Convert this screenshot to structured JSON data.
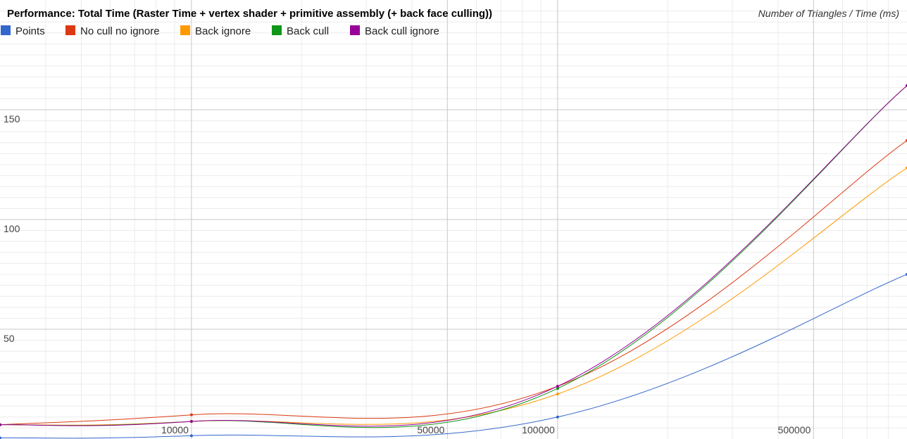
{
  "chart_data": {
    "type": "line",
    "title": "Performance: Total Time (Raster Time + vertex shader + primitive assembly (+ back face culling))",
    "subtitle": "Number of Triangles / Time (ms)",
    "legend_position": "top-left",
    "x_scale": "log",
    "xlim": [
      3000,
      900000
    ],
    "ylim": [
      0,
      200
    ],
    "x_ticks": [
      10000,
      50000,
      100000,
      500000
    ],
    "x_tick_labels": [
      "10000",
      "50000",
      "100000",
      "500000"
    ],
    "y_ticks": [
      50,
      100,
      150
    ],
    "y_tick_labels": [
      "50",
      "100",
      "150"
    ],
    "grid": true,
    "x": [
      3000,
      10000,
      100000,
      900000
    ],
    "series": [
      {
        "name": "Points",
        "color": "#3366cc",
        "values": [
          0.5,
          1.5,
          10,
          75
        ]
      },
      {
        "name": "No cull no ignore",
        "color": "#dc3912",
        "values": [
          6.5,
          11,
          24,
          136
        ]
      },
      {
        "name": "Back ignore",
        "color": "#ff9900",
        "values": [
          6.5,
          8,
          20.5,
          123.5
        ]
      },
      {
        "name": "Back cull",
        "color": "#109618",
        "values": [
          6.5,
          8,
          23,
          161
        ]
      },
      {
        "name": "Back cull ignore",
        "color": "#990099",
        "values": [
          6.5,
          8,
          24,
          161
        ]
      }
    ]
  }
}
